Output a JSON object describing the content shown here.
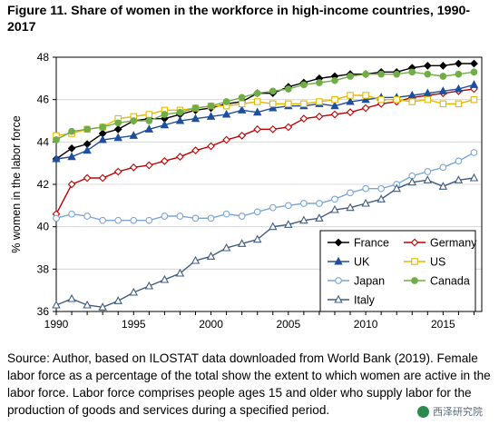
{
  "figure": {
    "title": "Figure 11. Share of women in the workforce in high-income countries, 1990-2017",
    "source_note": "Source: Author, based on ILOSTAT data downloaded from World Bank (2019). Female labor force as a percentage of the total show the extent to which women are active in the labor force. Labor force comprises people ages 15 and older who supply labor for the production of goods and services during a specified period.",
    "watermark": "西泽研究院"
  },
  "chart_data": {
    "type": "line",
    "title": "",
    "xlabel": "",
    "ylabel": "% women in the labor force",
    "xlim": [
      1990,
      2017.5
    ],
    "ylim": [
      36,
      48
    ],
    "xticks": [
      1990,
      1995,
      2000,
      2005,
      2010,
      2015
    ],
    "yticks": [
      36,
      38,
      40,
      42,
      44,
      46,
      48
    ],
    "grid": "horizontal",
    "legend_position": "bottom-right",
    "x": [
      1990,
      1991,
      1992,
      1993,
      1994,
      1995,
      1996,
      1997,
      1998,
      1999,
      2000,
      2001,
      2002,
      2003,
      2004,
      2005,
      2006,
      2007,
      2008,
      2009,
      2010,
      2011,
      2012,
      2013,
      2014,
      2015,
      2016,
      2017
    ],
    "series": [
      {
        "name": "France",
        "color": "#000000",
        "marker": "diamond",
        "fill": "#000000",
        "values": [
          43.2,
          43.7,
          43.9,
          44.4,
          44.6,
          45.0,
          45.1,
          45.1,
          45.3,
          45.5,
          45.6,
          45.8,
          45.9,
          46.3,
          46.3,
          46.6,
          46.8,
          47.0,
          47.1,
          47.2,
          47.2,
          47.3,
          47.3,
          47.5,
          47.6,
          47.6,
          47.7,
          47.7
        ]
      },
      {
        "name": "Germany",
        "color": "#c00000",
        "marker": "diamond",
        "fill": "#ffffff",
        "values": [
          40.6,
          42.0,
          42.3,
          42.3,
          42.6,
          42.8,
          42.9,
          43.1,
          43.3,
          43.6,
          43.8,
          44.1,
          44.3,
          44.6,
          44.6,
          44.7,
          45.1,
          45.2,
          45.3,
          45.4,
          45.6,
          45.8,
          45.9,
          46.1,
          46.2,
          46.3,
          46.4,
          46.5
        ]
      },
      {
        "name": "UK",
        "color": "#1f4e9c",
        "marker": "triangle",
        "fill": "#1f4e9c",
        "values": [
          43.2,
          43.3,
          43.6,
          44.1,
          44.2,
          44.3,
          44.6,
          44.8,
          45.0,
          45.1,
          45.2,
          45.3,
          45.5,
          45.4,
          45.6,
          45.7,
          45.7,
          45.8,
          45.7,
          45.9,
          46.0,
          46.1,
          46.1,
          46.2,
          46.3,
          46.4,
          46.5,
          46.7
        ]
      },
      {
        "name": "US",
        "color": "#e6b800",
        "marker": "square",
        "fill": "#ffffff",
        "values": [
          44.3,
          44.4,
          44.6,
          44.7,
          45.1,
          45.2,
          45.3,
          45.5,
          45.5,
          45.6,
          45.7,
          45.7,
          45.8,
          45.9,
          45.8,
          45.8,
          45.8,
          45.9,
          46.0,
          46.2,
          46.2,
          46.0,
          46.0,
          45.9,
          46.0,
          45.8,
          45.8,
          46.0
        ]
      },
      {
        "name": "Japan",
        "color": "#7aa6d6",
        "marker": "circle",
        "fill": "#ffffff",
        "values": [
          40.4,
          40.6,
          40.5,
          40.3,
          40.3,
          40.3,
          40.3,
          40.5,
          40.5,
          40.4,
          40.4,
          40.6,
          40.5,
          40.7,
          40.9,
          41.0,
          41.1,
          41.1,
          41.3,
          41.6,
          41.8,
          41.8,
          42.0,
          42.4,
          42.6,
          42.8,
          43.1,
          43.5
        ]
      },
      {
        "name": "Canada",
        "color": "#70ad47",
        "marker": "circle",
        "fill": "#70ad47",
        "values": [
          44.1,
          44.5,
          44.6,
          44.7,
          44.9,
          45.0,
          45.0,
          45.3,
          45.4,
          45.6,
          45.7,
          45.9,
          46.1,
          46.3,
          46.4,
          46.5,
          46.7,
          46.8,
          46.9,
          47.1,
          47.2,
          47.2,
          47.2,
          47.3,
          47.2,
          47.1,
          47.2,
          47.3
        ]
      },
      {
        "name": "Italy",
        "color": "#3f5c80",
        "marker": "triangle",
        "fill": "#ffffff",
        "values": [
          36.3,
          36.6,
          36.3,
          36.2,
          36.5,
          36.9,
          37.2,
          37.5,
          37.8,
          38.4,
          38.6,
          39.0,
          39.2,
          39.4,
          40.0,
          40.1,
          40.3,
          40.4,
          40.8,
          40.9,
          41.1,
          41.3,
          41.8,
          42.1,
          42.2,
          41.9,
          42.2,
          42.3
        ]
      }
    ]
  }
}
